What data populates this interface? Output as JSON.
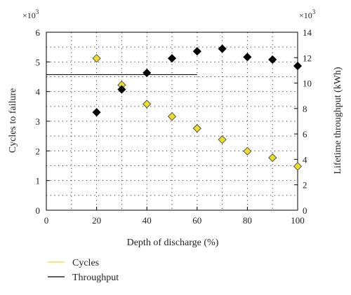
{
  "chart_data": {
    "type": "scatter",
    "xlabel": "Depth of discharge (%)",
    "ylabel_left": "Cycles to failure",
    "ylabel_right": "Lifetime throughput (kWh)",
    "left_multiplier": "×10",
    "left_multiplier_exp": "3",
    "right_multiplier": "×10",
    "right_multiplier_exp": "3",
    "xlim": [
      0,
      100
    ],
    "ylim_left": [
      0,
      6
    ],
    "ylim_right": [
      0,
      14
    ],
    "x_ticks": [
      0,
      20,
      40,
      60,
      80,
      100
    ],
    "y_left_ticks": [
      0,
      1,
      2,
      3,
      4,
      5,
      6
    ],
    "y_right_ticks": [
      0,
      2,
      4,
      6,
      8,
      10,
      12,
      14
    ],
    "grid": true,
    "legend_position": "bottom-left, below plot",
    "series": [
      {
        "name": "Cycles",
        "axis": "left",
        "marker": "diamond",
        "color": "#e8dd2e",
        "x": [
          20,
          30,
          40,
          50,
          60,
          70,
          80,
          90,
          100
        ],
        "values": [
          5.12,
          4.22,
          3.58,
          3.16,
          2.76,
          2.38,
          1.99,
          1.77,
          1.48
        ]
      },
      {
        "name": "Throughput",
        "axis": "right",
        "marker": "diamond",
        "color": "#000000",
        "x": [
          20,
          30,
          40,
          50,
          60,
          70,
          80,
          90,
          100
        ],
        "values": [
          7.7,
          9.5,
          10.8,
          11.95,
          12.5,
          12.7,
          12.05,
          11.85,
          11.35
        ]
      }
    ],
    "legend": [
      {
        "label": "Cycles",
        "color": "#e8dd2e"
      },
      {
        "label": "Throughput",
        "color": "#000000"
      }
    ]
  }
}
